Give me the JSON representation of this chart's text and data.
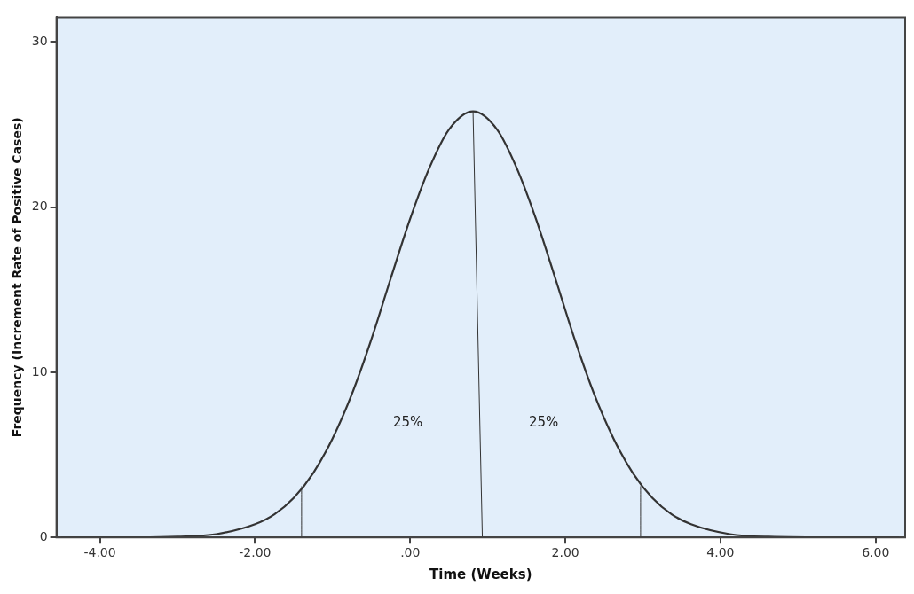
{
  "chart_data": {
    "type": "line",
    "xlabel": "Time (Weeks)",
    "ylabel": "Frequency (Increment Rate of Positive Cases)",
    "xlim": [
      -4.56,
      6.38
    ],
    "ylim": [
      0,
      31.5
    ],
    "xticks": [
      {
        "value": -4,
        "label": "-4.00"
      },
      {
        "value": -2,
        "label": "-2.00"
      },
      {
        "value": 0,
        "label": ".00"
      },
      {
        "value": 2,
        "label": "2.00"
      },
      {
        "value": 4,
        "label": "4.00"
      },
      {
        "value": 6,
        "label": "6.00"
      }
    ],
    "yticks": [
      0,
      10,
      20,
      30
    ],
    "grid": false,
    "legend": false,
    "marker": "none",
    "line_style": "solid",
    "series": [
      {
        "color": "#333333",
        "x": [
          -4.5,
          -3.5,
          -3.0,
          -2.5,
          -2.0,
          -1.75,
          -1.5,
          -1.25,
          -1.0,
          -0.75,
          -0.5,
          -0.25,
          0,
          0.25,
          0.5,
          0.81,
          1.12,
          1.37,
          1.62,
          1.87,
          2.12,
          2.37,
          2.62,
          2.87,
          3.12,
          3.37,
          3.62,
          4.12,
          4.62,
          5.5,
          6.3
        ],
        "values": [
          0,
          0,
          0.04,
          0.2,
          0.8,
          1.4,
          2.4,
          3.9,
          6.0,
          8.7,
          12.0,
          15.7,
          19.3,
          22.4,
          24.7,
          25.8,
          24.7,
          22.4,
          19.3,
          15.7,
          12.0,
          8.7,
          6.0,
          3.9,
          2.4,
          1.4,
          0.8,
          0.2,
          0.04,
          0,
          0
        ]
      },
      {
        "color": "#333333",
        "x": [
          -1.4,
          -1.4
        ],
        "values": [
          0,
          3.1
        ]
      },
      {
        "color": "#333333",
        "x": [
          0.81,
          0.93
        ],
        "values": [
          25.8,
          0
        ]
      },
      {
        "color": "#333333",
        "x": [
          2.97,
          2.97
        ],
        "values": [
          0,
          3.1
        ]
      }
    ],
    "annotations": [
      "25%",
      "25%"
    ]
  }
}
